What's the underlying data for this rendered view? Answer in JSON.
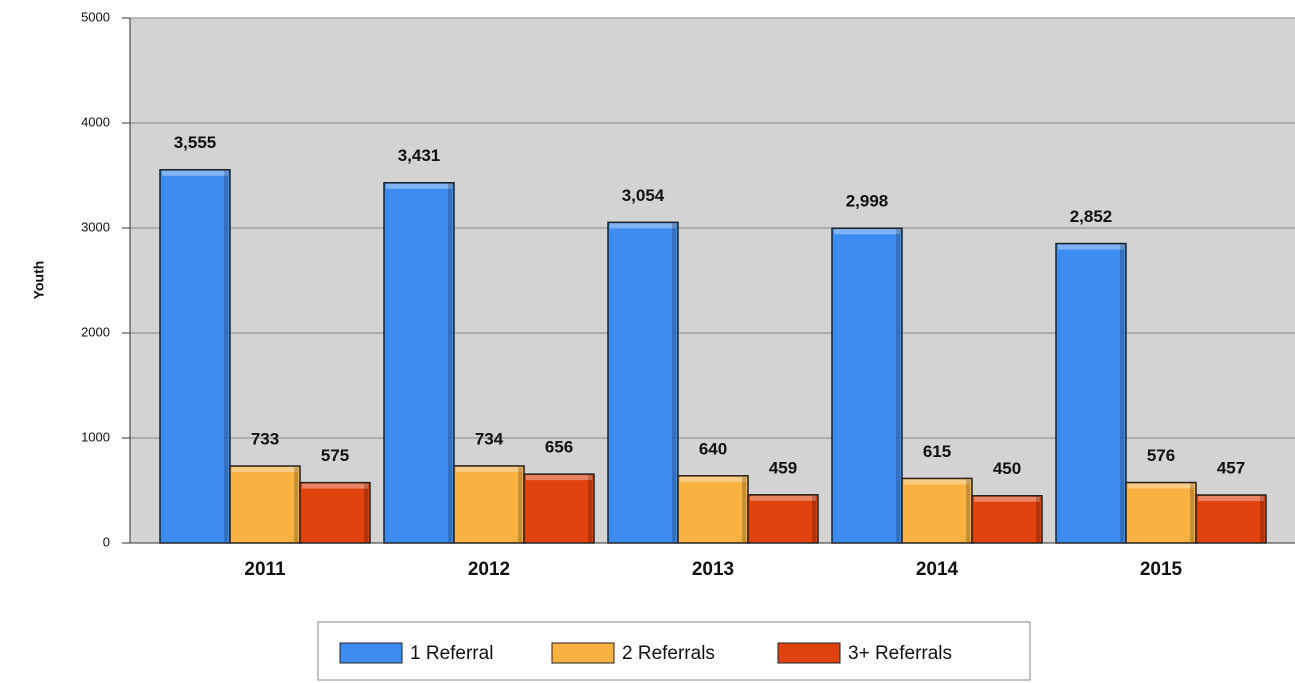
{
  "chart_data": {
    "type": "bar",
    "ylabel": "Youth",
    "categories": [
      "2011",
      "2012",
      "2013",
      "2014",
      "2015"
    ],
    "series": [
      {
        "name": "1 Referral",
        "color": "#3f8cf0",
        "values": [
          3555,
          3431,
          3054,
          2998,
          2852
        ],
        "value_labels": [
          "3,555",
          "3,431",
          "3,054",
          "2,998",
          "2,852"
        ]
      },
      {
        "name": "2 Referrals",
        "color": "#f9b141",
        "values": [
          733,
          734,
          640,
          615,
          576
        ]
      },
      {
        "name": "3+ Referrals",
        "color": "#e0420e",
        "values": [
          575,
          656,
          459,
          450,
          457
        ]
      }
    ],
    "ylim": [
      0,
      5000
    ],
    "yticks": [
      0,
      1000,
      2000,
      3000,
      4000,
      5000
    ],
    "grid": true,
    "legend": "bottom"
  }
}
